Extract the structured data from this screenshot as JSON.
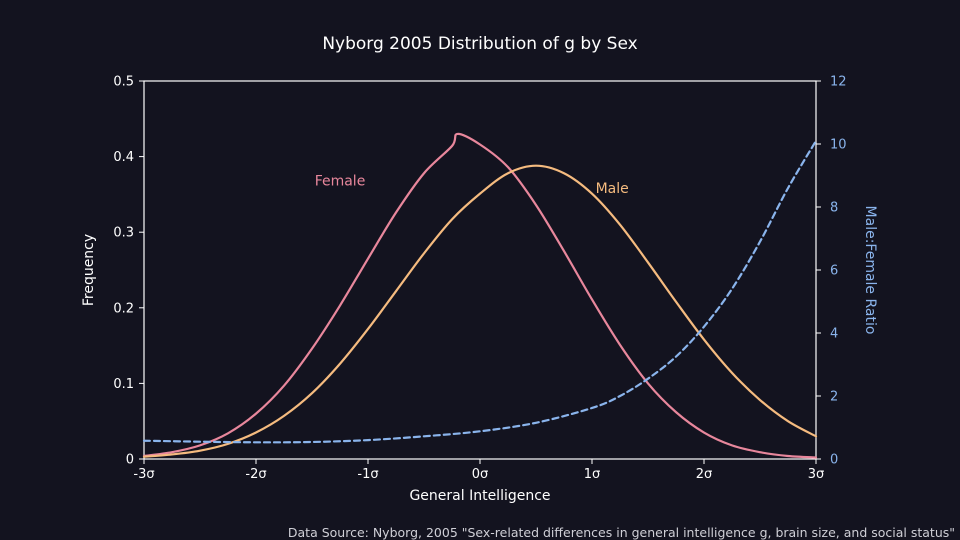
{
  "chart_data": {
    "type": "line",
    "title": "Nyborg 2005 Distribution of g by Sex",
    "xlabel": "General Intelligence",
    "ylabel": "Frequency",
    "y2label": "Male:Female Ratio",
    "xlim": [
      -3,
      3
    ],
    "ylim": [
      0,
      0.5
    ],
    "y2lim": [
      0,
      12
    ],
    "x_ticks": [
      -3,
      -2,
      -1,
      0,
      1,
      2,
      3
    ],
    "x_tick_labels": [
      "-3σ",
      "-2σ",
      "-1σ",
      "0σ",
      "1σ",
      "2σ",
      "3σ"
    ],
    "y_ticks": [
      0,
      0.1,
      0.2,
      0.3,
      0.4,
      0.5
    ],
    "y_tick_labels": [
      "0",
      "0.1",
      "0.2",
      "0.3",
      "0.4",
      "0.5"
    ],
    "y2_ticks": [
      0,
      2,
      4,
      6,
      8,
      10,
      12
    ],
    "y2_tick_labels": [
      "0",
      "2",
      "4",
      "6",
      "8",
      "10",
      "12"
    ],
    "grid": false,
    "series": [
      {
        "name": "Female",
        "axis": "left",
        "color": "#e8879c",
        "style": "solid",
        "x": [
          -3,
          -2.75,
          -2.5,
          -2.25,
          -2,
          -1.75,
          -1.5,
          -1.25,
          -1,
          -0.75,
          -0.5,
          -0.25,
          -0.2,
          0,
          0.25,
          0.5,
          0.75,
          1,
          1.25,
          1.5,
          1.75,
          2,
          2.25,
          2.5,
          2.75,
          3
        ],
        "y": [
          0.004,
          0.009,
          0.018,
          0.034,
          0.06,
          0.097,
          0.146,
          0.203,
          0.265,
          0.326,
          0.378,
          0.414,
          0.43,
          0.416,
          0.386,
          0.336,
          0.275,
          0.211,
          0.151,
          0.1,
          0.062,
          0.035,
          0.018,
          0.009,
          0.004,
          0.002
        ]
      },
      {
        "name": "Male",
        "axis": "left",
        "color": "#f5bb7f",
        "style": "solid",
        "x": [
          -3,
          -2.75,
          -2.5,
          -2.25,
          -2,
          -1.75,
          -1.5,
          -1.25,
          -1,
          -0.75,
          -0.5,
          -0.25,
          0,
          0.25,
          0.5,
          0.75,
          1,
          1.25,
          1.5,
          1.75,
          2,
          2.25,
          2.5,
          2.75,
          3
        ],
        "y": [
          0.003,
          0.006,
          0.011,
          0.02,
          0.035,
          0.057,
          0.087,
          0.126,
          0.172,
          0.222,
          0.272,
          0.317,
          0.351,
          0.378,
          0.388,
          0.378,
          0.351,
          0.31,
          0.26,
          0.208,
          0.158,
          0.114,
          0.078,
          0.05,
          0.03
        ]
      },
      {
        "name": "Male:Female Ratio",
        "axis": "right",
        "color": "#8ab4ec",
        "style": "dashed",
        "x": [
          -3,
          -2.5,
          -2,
          -1.5,
          -1,
          -0.5,
          0,
          0.5,
          1,
          1.25,
          1.5,
          1.75,
          2,
          2.25,
          2.5,
          2.75,
          3
        ],
        "y": [
          0.58,
          0.55,
          0.53,
          0.54,
          0.6,
          0.72,
          0.88,
          1.15,
          1.62,
          2.0,
          2.55,
          3.25,
          4.2,
          5.4,
          6.9,
          8.6,
          10.1
        ]
      }
    ],
    "annotations": [
      {
        "text": "Female",
        "x": -1.25,
        "y": 0.362,
        "color": "#e8879c"
      },
      {
        "text": "Male",
        "x": 1.18,
        "y": 0.352,
        "color": "#f5bb7f"
      }
    ],
    "source": "Data Source: Nyborg, 2005 \"Sex-related differences in general intelligence g, brain size, and social status\""
  }
}
